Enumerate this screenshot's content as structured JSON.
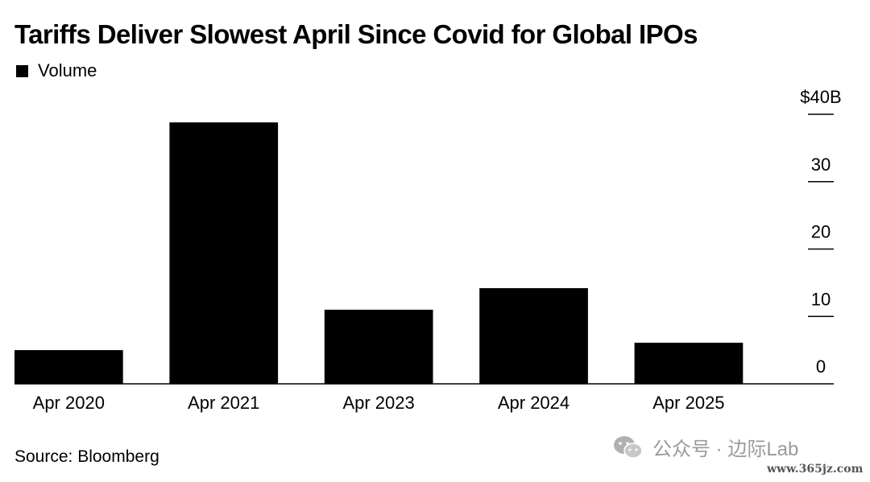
{
  "chart_data": {
    "type": "bar",
    "title": "Tariffs Deliver Slowest April Since Covid for Global IPOs",
    "legend": {
      "entries": [
        "Volume"
      ],
      "placement": "top-left"
    },
    "categories": [
      "Apr 2020",
      "Apr 2021",
      "Apr 2023",
      "Apr 2024",
      "Apr 2025"
    ],
    "series": [
      {
        "name": "Volume",
        "values": [
          5,
          38.8,
          11,
          14.2,
          6.1
        ],
        "color": "#000000"
      }
    ],
    "ylim": [
      0,
      40
    ],
    "yticks": [
      0,
      10,
      20,
      30,
      40
    ],
    "ytick_labels": [
      "0",
      "10",
      "20",
      "30",
      "$40B"
    ],
    "yaxis_position": "right",
    "grid": false,
    "xlabel": "",
    "ylabel": ""
  },
  "source": "Source: Bloomberg",
  "watermark": {
    "text": "公众号 · 边际Lab",
    "url": "www.365jz.com",
    "icon": "wechat-icon"
  }
}
